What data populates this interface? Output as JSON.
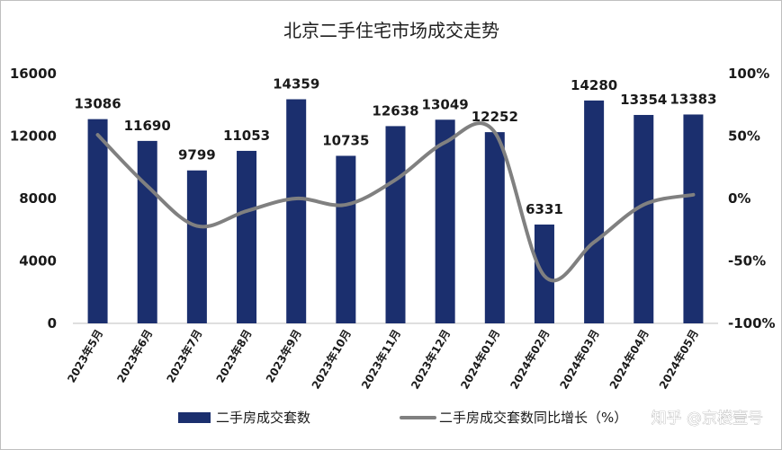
{
  "chart_data": {
    "type": "bar",
    "title": "北京二手住宅市场成交走势",
    "categories": [
      "2023年5月",
      "2023年6月",
      "2023年7月",
      "2023年8月",
      "2023年9月",
      "2023年10月",
      "2023年11月",
      "2023年12月",
      "2024年01月",
      "2024年02月",
      "2024年03月",
      "2024年04月",
      "2024年05月"
    ],
    "series": [
      {
        "name": "二手房成交套数",
        "type": "bar",
        "axis": "left",
        "color": "#1b2f6e",
        "values": [
          13086,
          11690,
          9799,
          11053,
          14359,
          10735,
          12638,
          13049,
          12252,
          6331,
          14280,
          13354,
          13383
        ],
        "labels": [
          "13086",
          "11690",
          "9799",
          "11053",
          "14359",
          "10735",
          "12638",
          "13049",
          "12252",
          "6331",
          "14280",
          "13354",
          "13383"
        ]
      },
      {
        "name": "二手房成交套数同比增长（%）",
        "type": "line",
        "axis": "right",
        "color": "#808080",
        "values": [
          51,
          10,
          -22,
          -10,
          0,
          -5,
          15,
          45,
          53,
          -62,
          -35,
          -5,
          3
        ]
      }
    ],
    "ylim_left": [
      0,
      16000
    ],
    "yticks_left": [
      "0",
      "4000",
      "8000",
      "12000",
      "16000"
    ],
    "ylim_right": [
      -100,
      100
    ],
    "yticks_right": [
      "-100%",
      "-50%",
      "0%",
      "50%",
      "100%"
    ],
    "legend": "bottom",
    "grid": false
  },
  "watermark": "知乎 @京楼壹号"
}
